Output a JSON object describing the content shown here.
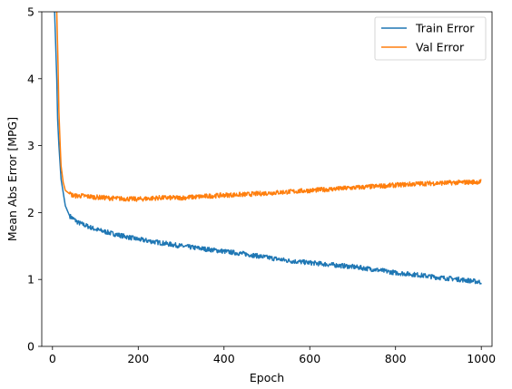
{
  "chart_data": {
    "type": "line",
    "title": "",
    "xlabel": "Epoch",
    "ylabel": "Mean Abs Error [MPG]",
    "xlim": [
      -25,
      1025
    ],
    "ylim": [
      0,
      5
    ],
    "xticks": [
      0,
      200,
      400,
      600,
      800,
      1000
    ],
    "yticks": [
      0,
      1,
      2,
      3,
      4,
      5
    ],
    "grid": false,
    "legend_position": "top-right",
    "series": [
      {
        "name": "Train Error",
        "color": "#1f77b4",
        "x": [
          5,
          10,
          12,
          15,
          18,
          20,
          25,
          30,
          40,
          50,
          60,
          80,
          100,
          150,
          200,
          250,
          300,
          350,
          400,
          450,
          500,
          550,
          600,
          650,
          700,
          750,
          800,
          850,
          900,
          950,
          1000
        ],
        "values": [
          5.0,
          4.0,
          3.4,
          3.0,
          2.7,
          2.5,
          2.3,
          2.1,
          1.95,
          1.9,
          1.85,
          1.8,
          1.75,
          1.67,
          1.6,
          1.55,
          1.5,
          1.46,
          1.42,
          1.38,
          1.33,
          1.28,
          1.25,
          1.22,
          1.19,
          1.15,
          1.1,
          1.07,
          1.03,
          1.0,
          0.96
        ]
      },
      {
        "name": "Val Error",
        "color": "#ff7f0e",
        "x": [
          10,
          13,
          15,
          18,
          20,
          25,
          30,
          40,
          50,
          70,
          100,
          150,
          200,
          250,
          300,
          350,
          400,
          450,
          500,
          550,
          600,
          650,
          700,
          750,
          800,
          850,
          900,
          950,
          1000
        ],
        "values": [
          5.0,
          4.2,
          3.5,
          3.0,
          2.7,
          2.45,
          2.33,
          2.28,
          2.25,
          2.25,
          2.23,
          2.21,
          2.2,
          2.22,
          2.22,
          2.24,
          2.26,
          2.27,
          2.29,
          2.31,
          2.33,
          2.35,
          2.37,
          2.39,
          2.41,
          2.43,
          2.44,
          2.45,
          2.46
        ]
      }
    ]
  }
}
